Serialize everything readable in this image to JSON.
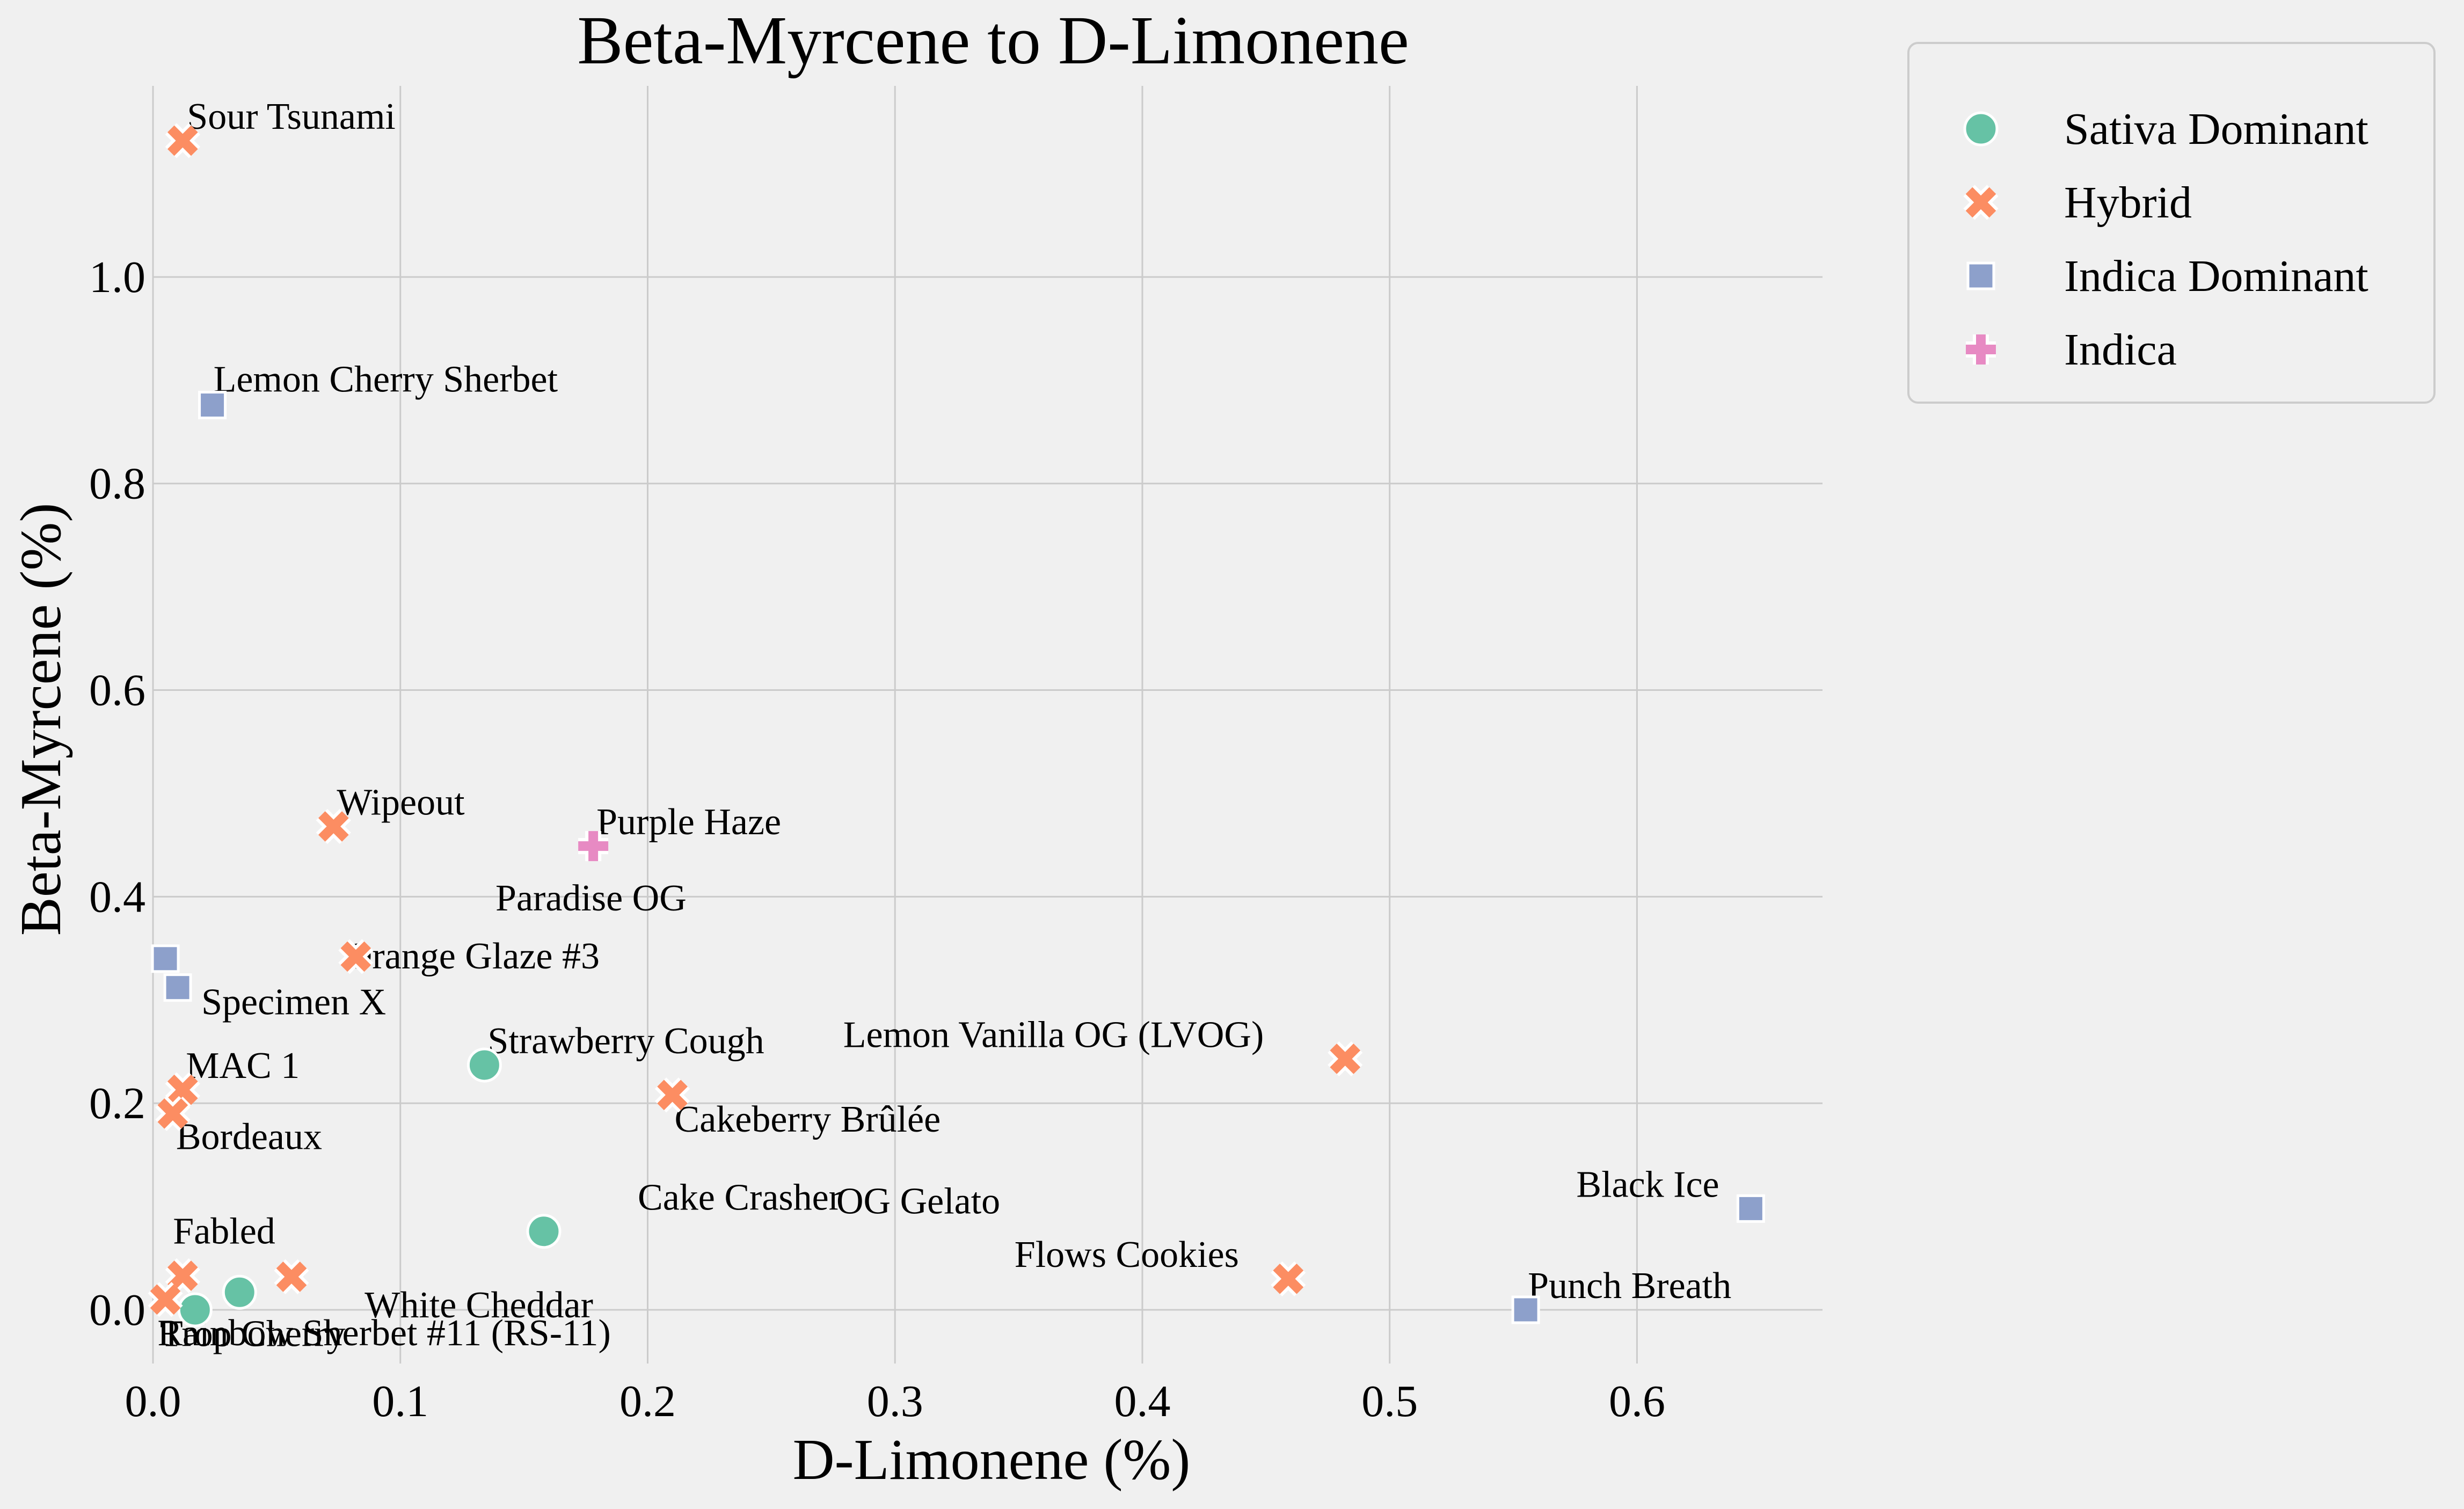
{
  "chart_data": {
    "type": "scatter",
    "title": "Beta-Myrcene to D-Limonene",
    "xlabel": "D-Limonene (%)",
    "ylabel": "Beta-Myrcene (%)",
    "xlim": [
      0.0,
      0.675
    ],
    "ylim": [
      -0.052,
      1.185
    ],
    "xticks": [
      0.0,
      0.1,
      0.2,
      0.3,
      0.4,
      0.5,
      0.6
    ],
    "xtick_labels": [
      "0.0",
      "0.1",
      "0.2",
      "0.3",
      "0.4",
      "0.5",
      "0.6"
    ],
    "yticks": [
      0.0,
      0.2,
      0.4,
      0.6,
      0.8,
      1.0
    ],
    "ytick_labels": [
      "0.0",
      "0.2",
      "0.4",
      "0.6",
      "0.8",
      "1.0"
    ],
    "grid": true,
    "legend_position": "outside-top-right",
    "series": [
      {
        "name": "Sativa Dominant",
        "marker": "circle",
        "color": "#66c2a5",
        "points": [
          {
            "label": "Strawberry Cough",
            "x": 0.134,
            "y": 0.237
          },
          {
            "label": "OG Gelato",
            "x": 0.158,
            "y": 0.076
          },
          {
            "label": "White Cheddar",
            "x": 0.035,
            "y": 0.017
          },
          {
            "label": "Rainbow Sherbet #11 (RS-11)",
            "x": 0.017,
            "y": 0.0
          }
        ]
      },
      {
        "name": "Hybrid",
        "marker": "x",
        "color": "#fc8d62",
        "points": [
          {
            "label": "Sour Tsunami",
            "x": 0.012,
            "y": 1.132
          },
          {
            "label": "Wipeout",
            "x": 0.073,
            "y": 0.468
          },
          {
            "label": "Orange Glaze #3",
            "x": 0.082,
            "y": 0.342
          },
          {
            "label": "MAC 1",
            "x": 0.012,
            "y": 0.213
          },
          {
            "label": "Bordeaux",
            "x": 0.008,
            "y": 0.19
          },
          {
            "label": "Cakeberry Brûlée",
            "x": 0.21,
            "y": 0.208
          },
          {
            "label": "Lemon Vanilla OG (LVOG)",
            "x": 0.482,
            "y": 0.243
          },
          {
            "label": "Flows Cookies",
            "x": 0.459,
            "y": 0.03
          },
          {
            "label": "Fabled",
            "x": 0.012,
            "y": 0.033
          },
          {
            "label": "Cake Crasher",
            "x": 0.056,
            "y": 0.032
          },
          {
            "label": "Trop Cherry",
            "x": 0.005,
            "y": 0.01
          }
        ]
      },
      {
        "name": "Indica Dominant",
        "marker": "square",
        "color": "#8da0cb",
        "points": [
          {
            "label": "Lemon Cherry Sherbet",
            "x": 0.024,
            "y": 0.876
          },
          {
            "label": "Specimen X",
            "x": 0.01,
            "y": 0.312
          },
          {
            "label": "Paradise OG",
            "x": 0.005,
            "y": 0.34
          },
          {
            "label": "Black Ice",
            "x": 0.646,
            "y": 0.098
          },
          {
            "label": "Punch Breath",
            "x": 0.555,
            "y": 0.0
          }
        ]
      },
      {
        "name": "Indica",
        "marker": "plus",
        "color": "#e78ac3",
        "points": [
          {
            "label": "Purple Haze",
            "x": 0.178,
            "y": 0.449
          }
        ]
      }
    ]
  }
}
